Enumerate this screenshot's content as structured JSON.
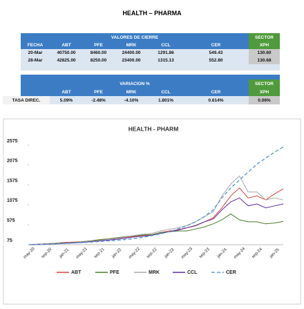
{
  "header": {
    "title": "HEALTH – PHARMA"
  },
  "tables": [
    {
      "title": "VALORES DE CIERRE",
      "sector": "SECTOR",
      "columns": [
        "FECHA",
        "ABT",
        "PFE",
        "MRK",
        "CCL",
        "CER",
        "XPH"
      ],
      "rows": [
        [
          "20-Mar",
          "40750.00",
          "8460.00",
          "24400.00",
          "1291.86",
          "549.43",
          "130.60"
        ],
        [
          "28-Mar",
          "42825.00",
          "8250.00",
          "23400.00",
          "1315.13",
          "552.80",
          "130.68"
        ]
      ]
    },
    {
      "title": "VARIACION %",
      "sector": "SECTOR",
      "columns": [
        "ABT",
        "PFE",
        "MRK",
        "CCL",
        "CER",
        "XPH"
      ],
      "rows": [
        [
          "TASA DIREC.",
          "5.09%",
          "-2.48%",
          "-4.10%",
          "1.801%",
          "0.614%",
          "0.06%"
        ]
      ]
    }
  ],
  "chart_data": {
    "type": "line",
    "title": "HEALTH - PHARM",
    "categories": [
      "may-20",
      null,
      "sep-20",
      null,
      "jan-21",
      null,
      "may-21",
      null,
      "sep-21",
      null,
      "jan-22",
      null,
      "may-22",
      null,
      "sep-22",
      null,
      "jan-23",
      null,
      "may-23",
      null,
      "sep-23",
      null,
      "jan-24",
      null,
      "may-24",
      null,
      "sep-24",
      null,
      "jan-25",
      null
    ],
    "series": [
      {
        "name": "ABT",
        "color": "#e0403a",
        "values": [
          75,
          90,
          100,
          110,
          130,
          140,
          150,
          170,
          200,
          220,
          230,
          260,
          280,
          300,
          330,
          380,
          420,
          450,
          500,
          550,
          650,
          750,
          1000,
          1300,
          1500,
          1250,
          1300,
          1200,
          1350,
          1480
        ]
      },
      {
        "name": "PFE",
        "color": "#4a7a2a",
        "values": [
          75,
          85,
          95,
          110,
          120,
          130,
          150,
          170,
          200,
          220,
          250,
          280,
          300,
          320,
          330,
          380,
          400,
          420,
          420,
          470,
          520,
          600,
          700,
          850,
          700,
          650,
          650,
          600,
          620,
          660
        ]
      },
      {
        "name": "MRK",
        "color": "#a8a8a8",
        "values": [
          75,
          85,
          95,
          100,
          115,
          125,
          140,
          160,
          180,
          210,
          230,
          270,
          310,
          340,
          360,
          420,
          460,
          500,
          560,
          650,
          780,
          900,
          1300,
          1600,
          1800,
          1400,
          1400,
          1200,
          1250,
          1200
        ]
      },
      {
        "name": "CCL",
        "color": "#5a2ca0",
        "values": [
          75,
          80,
          90,
          95,
          110,
          120,
          130,
          150,
          170,
          190,
          210,
          240,
          270,
          290,
          310,
          360,
          400,
          440,
          500,
          560,
          650,
          720,
          950,
          1150,
          1250,
          1050,
          1100,
          1000,
          1050,
          1100
        ]
      },
      {
        "name": "CER",
        "color": "#5b9bd5",
        "dashed": true,
        "values": [
          75,
          80,
          88,
          95,
          105,
          115,
          125,
          140,
          155,
          170,
          185,
          205,
          230,
          260,
          300,
          350,
          400,
          470,
          550,
          650,
          780,
          950,
          1250,
          1500,
          1700,
          1900,
          2100,
          2250,
          2400,
          2530
        ]
      }
    ],
    "ylim": [
      75,
      2575
    ],
    "yticks": [
      75,
      575,
      1075,
      1575,
      2075,
      2575
    ],
    "legend": "bottom"
  }
}
